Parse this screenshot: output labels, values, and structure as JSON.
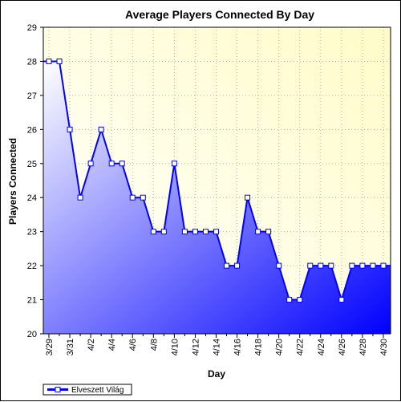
{
  "chart_data": {
    "type": "area",
    "title": "Average Players Connected By Day",
    "xlabel": "Day",
    "ylabel": "Players Connected",
    "ylim": [
      20,
      29
    ],
    "yticks": [
      20,
      21,
      22,
      23,
      24,
      25,
      26,
      27,
      28,
      29
    ],
    "x": [
      "3/29",
      "3/30",
      "3/31",
      "4/1",
      "4/2",
      "4/3",
      "4/4",
      "4/5",
      "4/6",
      "4/7",
      "4/8",
      "4/9",
      "4/10",
      "4/11",
      "4/12",
      "4/13",
      "4/14",
      "4/15",
      "4/16",
      "4/17",
      "4/18",
      "4/19",
      "4/20",
      "4/21",
      "4/22",
      "4/23",
      "4/24",
      "4/25",
      "4/26",
      "4/27",
      "4/28",
      "4/29",
      "4/30"
    ],
    "xtick_labels": [
      "3/29",
      "3/31",
      "4/2",
      "4/4",
      "4/6",
      "4/8",
      "4/10",
      "4/12",
      "4/14",
      "4/16",
      "4/18",
      "4/20",
      "4/22",
      "4/24",
      "4/26",
      "4/28",
      "4/30"
    ],
    "series": [
      {
        "name": "Elveszett Világ",
        "values": [
          28,
          28,
          26,
          24,
          25,
          26,
          25,
          25,
          24,
          24,
          23,
          23,
          25,
          23,
          23,
          23,
          23,
          22,
          22,
          24,
          23,
          23,
          22,
          21,
          21,
          22,
          22,
          22,
          21,
          22,
          22,
          22,
          22
        ]
      }
    ],
    "grid": true,
    "legend_position": "bottom-left",
    "colors": {
      "line": "#0000ff",
      "fill_light": "#ffffff",
      "fill_dark": "#0000ff",
      "plot_bg_light": "#ffffff",
      "plot_bg_warm": "#fffcc8",
      "marker_fill": "#ffffff"
    }
  }
}
